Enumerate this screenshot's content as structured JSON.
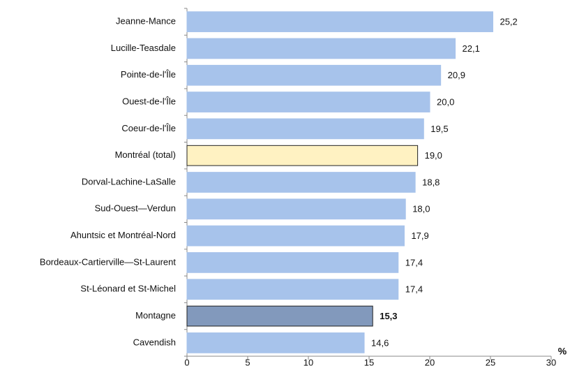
{
  "chart_data": {
    "type": "barh",
    "categories": [
      "Jeanne-Mance",
      "Lucille-Teasdale",
      "Pointe-de-l'Île",
      "Ouest-de-l'Île",
      "Coeur-de-l'Île",
      "Montréal (total)",
      "Dorval-Lachine-LaSalle",
      "Sud-Ouest—Verdun",
      "Ahuntsic et Montréal-Nord",
      "Bordeaux-Cartierville—St-Laurent",
      "St-Léonard et St-Michel",
      "Montagne",
      "Cavendish"
    ],
    "values": [
      25.2,
      22.1,
      20.9,
      20.0,
      19.5,
      19.0,
      18.8,
      18.0,
      17.9,
      17.4,
      17.4,
      15.3,
      14.6
    ],
    "value_labels": [
      "25,2",
      "22,1",
      "20,9",
      "20,0",
      "19,5",
      "19,0",
      "18,8",
      "18,0",
      "17,9",
      "17,4",
      "17,4",
      "15,3",
      "14,6"
    ],
    "colors": [
      "#a7c3eb",
      "#a7c3eb",
      "#a7c3eb",
      "#a7c3eb",
      "#a7c3eb",
      "#fff2c2",
      "#a7c3eb",
      "#a7c3eb",
      "#a7c3eb",
      "#a7c3eb",
      "#a7c3eb",
      "#8299bc",
      "#a7c3eb"
    ],
    "edgecolors": [
      "#a7c3eb",
      "#a7c3eb",
      "#a7c3eb",
      "#a7c3eb",
      "#a7c3eb",
      "#222222",
      "#a7c3eb",
      "#a7c3eb",
      "#a7c3eb",
      "#a7c3eb",
      "#a7c3eb",
      "#222222",
      "#a7c3eb"
    ],
    "value_label_weights": [
      "normal",
      "normal",
      "normal",
      "normal",
      "normal",
      "normal",
      "normal",
      "normal",
      "normal",
      "normal",
      "normal",
      "bold",
      "normal"
    ],
    "xlabel": "%",
    "xlim": [
      0,
      30
    ],
    "xticks": [
      0,
      5,
      10,
      15,
      20,
      25,
      30
    ]
  }
}
